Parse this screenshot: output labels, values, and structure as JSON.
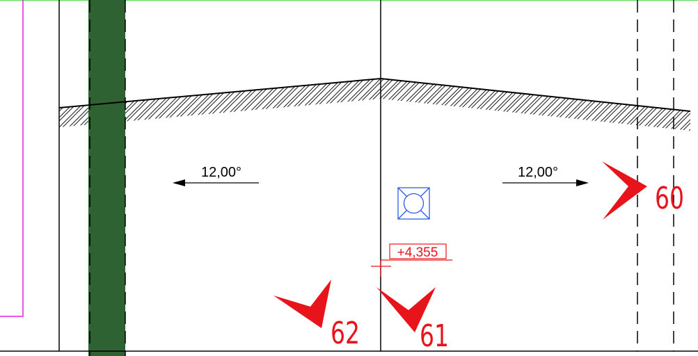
{
  "dimensions": [
    {
      "label": "12,00°"
    },
    {
      "label": "12,00°"
    }
  ],
  "elevation": {
    "label": "+4,355"
  },
  "markers": [
    {
      "label": "60"
    },
    {
      "label": "62"
    },
    {
      "label": "61"
    }
  ]
}
